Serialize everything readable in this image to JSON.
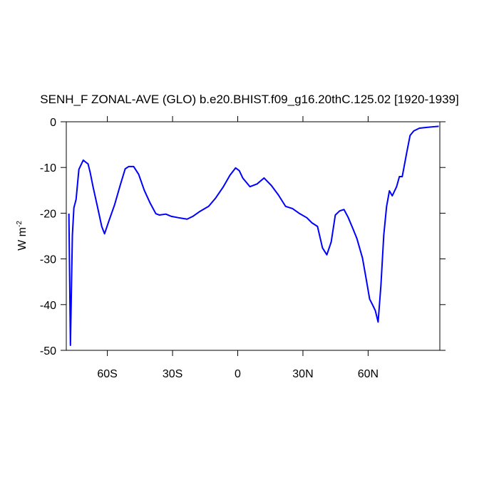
{
  "chart_data": {
    "type": "line",
    "title": "SENH_F ZONAL-AVE (GLO) b.e20.BHIST.f09_g16.20thC.125.02 [1920-1939]",
    "ylabel": "W m",
    "ylabel_exponent": "-2",
    "xlim": [
      -78.9,
      93
    ],
    "ylim": [
      -50,
      0
    ],
    "xticks": [
      {
        "value": -60,
        "label": "60S"
      },
      {
        "value": -30,
        "label": "30S"
      },
      0,
      {
        "value": 30,
        "label": "30N"
      },
      {
        "value": 60,
        "label": "60N"
      }
    ],
    "yticks": [
      0,
      -10,
      -20,
      -30,
      -40,
      -50
    ],
    "x": [
      -77.7,
      -77.0,
      -76.1,
      -75.4,
      -74.4,
      -73.1,
      -71.1,
      -69.8,
      -68.9,
      -67.9,
      -66.6,
      -64.6,
      -62.6,
      -61.3,
      -59.3,
      -56.7,
      -54.1,
      -51.8,
      -50.2,
      -47.9,
      -45.6,
      -43.0,
      -40.3,
      -37.7,
      -36.1,
      -33.1,
      -30.5,
      -27.2,
      -23.3,
      -20.7,
      -17.4,
      -13.4,
      -10.2,
      -6.6,
      -3.6,
      -1.0,
      0.7,
      2.3,
      5.6,
      8.9,
      12.1,
      15.4,
      18.7,
      22.0,
      25.2,
      28.5,
      31.8,
      34.1,
      36.7,
      39.0,
      41.0,
      43.0,
      44.9,
      46.9,
      48.9,
      50.8,
      53.1,
      54.8,
      57.4,
      59.0,
      60.7,
      62.0,
      63.3,
      64.6,
      65.9,
      67.2,
      68.5,
      69.8,
      71.1,
      73.1,
      74.4,
      75.7,
      77.7,
      79.3,
      81.0,
      83.6,
      87.5,
      89.8,
      92.5
    ],
    "series": [
      {
        "name": "SENH_F",
        "color": "#0000ff",
        "values": [
          -20.1,
          -48.9,
          -24.8,
          -18.8,
          -17.0,
          -10.4,
          -8.4,
          -8.9,
          -9.2,
          -11.1,
          -14.2,
          -18.5,
          -22.9,
          -24.5,
          -21.7,
          -18.2,
          -13.9,
          -10.3,
          -9.8,
          -9.8,
          -11.5,
          -15.0,
          -17.8,
          -20.1,
          -20.4,
          -20.2,
          -20.7,
          -21.0,
          -21.3,
          -20.7,
          -19.6,
          -18.5,
          -16.7,
          -14.2,
          -11.7,
          -10.1,
          -10.7,
          -12.3,
          -14.2,
          -13.6,
          -12.3,
          -13.9,
          -16.0,
          -18.5,
          -19.0,
          -20.1,
          -21.0,
          -22.1,
          -22.9,
          -27.6,
          -29.1,
          -26.3,
          -20.4,
          -19.5,
          -19.2,
          -20.9,
          -23.5,
          -25.5,
          -29.8,
          -34.1,
          -38.8,
          -40.0,
          -41.3,
          -43.8,
          -35.7,
          -24.8,
          -18.5,
          -15.1,
          -16.2,
          -14.2,
          -12.0,
          -12.0,
          -6.9,
          -3.0,
          -2.0,
          -1.4,
          -1.2,
          -1.1,
          -1.0
        ]
      }
    ]
  }
}
